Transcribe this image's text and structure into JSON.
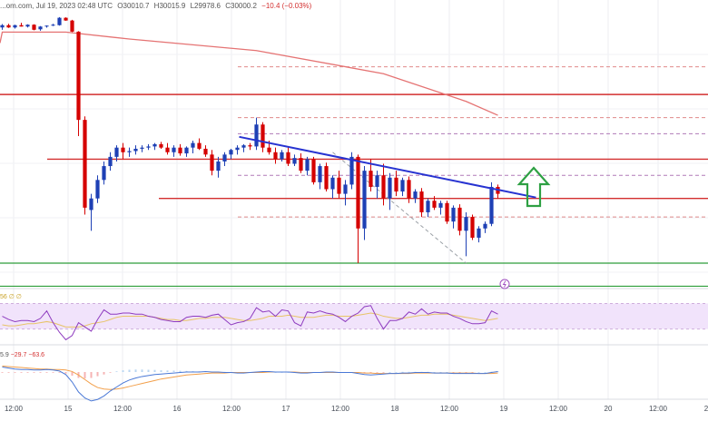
{
  "header": {
    "source_fragment": "...om.com, Jul 19, 2023 02:48 UTC",
    "open": "O30010.7",
    "high": "H30015.9",
    "low": "L29978.6",
    "close": "C30000.2",
    "change": "−10.4 (−0.03%)"
  },
  "indicators": {
    "rsi_label": "56 ∅ ∅",
    "macd_values": [
      "5.9",
      "−29.7",
      "−63.6"
    ]
  },
  "colors": {
    "up": "#1e40b5",
    "down": "#d50000",
    "ma": "#e57373",
    "trendline": "#2733d1",
    "resistance": "#d32f2f",
    "support": "#2e9e3a",
    "arrow": "#2ea043",
    "rsi_line": "#8e3bbf",
    "rsi_band": "#f1e3fb",
    "rsi_ma": "#e8c468",
    "macd_line": "#4a78d6",
    "macd_signal": "#f29f4a"
  },
  "x_axis": {
    "ticks": [
      "12:00",
      "15",
      "12:00",
      "16",
      "12:00",
      "17",
      "12:00",
      "18",
      "12:00",
      "19",
      "12:00",
      "20",
      "12:00",
      "2"
    ]
  },
  "chart_data": {
    "type": "candlestick",
    "candles": [
      [
        0,
        2.0,
        3.5,
        1.0,
        3.0
      ],
      [
        1,
        3.0,
        3.6,
        1.8,
        2.0
      ],
      [
        2,
        2.0,
        3.2,
        1.5,
        3.0
      ],
      [
        3,
        3.0,
        4.0,
        2.4,
        2.4
      ],
      [
        4,
        2.4,
        3.4,
        2.0,
        3.2
      ],
      [
        5,
        3.2,
        3.4,
        0.8,
        1.0
      ],
      [
        6,
        1.2,
        2.6,
        0.6,
        2.4
      ],
      [
        7,
        2.4,
        2.9,
        1.9,
        2.8
      ],
      [
        8,
        2.8,
        3.6,
        2.6,
        3.2
      ],
      [
        9,
        3.0,
        6.5,
        2.8,
        6.2
      ],
      [
        10,
        6.2,
        6.4,
        4.9,
        5.0
      ],
      [
        11,
        5.0,
        5.3,
        0.0,
        0.2
      ],
      [
        12,
        0.2,
        0.4,
        -45.0,
        -38.0
      ],
      [
        13,
        -38.0,
        -36.5,
        -79.0,
        -76.0
      ],
      [
        14,
        -77.0,
        -70.0,
        -86.0,
        -72.0
      ],
      [
        15,
        -72.0,
        -62.0,
        -74.0,
        -64.0
      ],
      [
        16,
        -64.0,
        -56.0,
        -66.0,
        -58.0
      ],
      [
        17,
        -58.0,
        -52.0,
        -60.0,
        -54.0
      ],
      [
        18,
        -54.0,
        -49.0,
        -56.0,
        -50.0
      ],
      [
        19,
        -50.0,
        -48.0,
        -55.0,
        -52.0
      ],
      [
        20,
        -52.0,
        -50.0,
        -54.0,
        -51.5
      ],
      [
        21,
        -51.5,
        -49.0,
        -53.0,
        -50.5
      ],
      [
        22,
        -50.5,
        -49.0,
        -52.0,
        -50.0
      ],
      [
        23,
        -50.0,
        -48.5,
        -51.0,
        -49.5
      ],
      [
        24,
        -49.5,
        -48.0,
        -51.0,
        -48.5
      ],
      [
        25,
        -48.5,
        -47.5,
        -50.5,
        -50.0
      ],
      [
        26,
        -50.0,
        -48.0,
        -53.0,
        -52.0
      ],
      [
        27,
        -52.0,
        -49.0,
        -54.0,
        -50.0
      ],
      [
        28,
        -50.0,
        -48.5,
        -53.5,
        -52.5
      ],
      [
        29,
        -52.5,
        -49.5,
        -54.0,
        -50.0
      ],
      [
        30,
        -50.0,
        -47.0,
        -52.5,
        -48.0
      ],
      [
        31,
        -48.0,
        -46.0,
        -51.0,
        -50.5
      ],
      [
        32,
        -50.5,
        -49.0,
        -54.0,
        -53.0
      ],
      [
        33,
        -53.0,
        -51.0,
        -62.0,
        -60.0
      ],
      [
        34,
        -60.0,
        -54.0,
        -63.0,
        -56.0
      ],
      [
        35,
        -56.0,
        -52.0,
        -58.0,
        -53.0
      ],
      [
        36,
        -53.0,
        -50.5,
        -55.0,
        -51.0
      ],
      [
        37,
        -51.0,
        -49.0,
        -53.0,
        -50.0
      ],
      [
        38,
        -50.0,
        -48.5,
        -52.0,
        -49.0
      ],
      [
        39,
        -49.0,
        -48.0,
        -51.0,
        -49.5
      ],
      [
        40,
        -49.5,
        -37.0,
        -51.0,
        -40.0
      ],
      [
        41,
        -40.0,
        -39.0,
        -52.0,
        -50.0
      ],
      [
        42,
        -50.0,
        -47.0,
        -53.0,
        -52.0
      ],
      [
        43,
        -52.0,
        -50.0,
        -57.0,
        -55.0
      ],
      [
        44,
        -55.0,
        -51.0,
        -56.0,
        -52.0
      ],
      [
        45,
        -52.0,
        -50.0,
        -58.0,
        -57.0
      ],
      [
        46,
        -57.0,
        -53.0,
        -58.0,
        -54.5
      ],
      [
        47,
        -54.5,
        -52.5,
        -61.0,
        -60.0
      ],
      [
        48,
        -60.0,
        -54.0,
        -62.0,
        -55.0
      ],
      [
        49,
        -55.0,
        -54.0,
        -66.0,
        -65.0
      ],
      [
        50,
        -65.0,
        -57.0,
        -68.0,
        -58.0
      ],
      [
        51,
        -58.0,
        -56.5,
        -69.0,
        -68.0
      ],
      [
        52,
        -68.0,
        -62.0,
        -72.0,
        -63.0
      ],
      [
        53,
        -63.0,
        -60.0,
        -72.0,
        -70.0
      ],
      [
        54,
        -70.0,
        -64.0,
        -75.0,
        -66.0
      ],
      [
        55,
        -66.0,
        -52.0,
        -68.0,
        -54.0
      ],
      [
        56,
        -54.0,
        -53.0,
        -100.0,
        -85.0
      ],
      [
        57,
        -85.0,
        -58.0,
        -90.0,
        -60.0
      ],
      [
        58,
        -60.0,
        -55.0,
        -69.0,
        -67.0
      ],
      [
        59,
        -67.0,
        -60.0,
        -72.0,
        -62.0
      ],
      [
        60,
        -62.0,
        -57.0,
        -75.0,
        -72.0
      ],
      [
        61,
        -72.0,
        -61.0,
        -77.0,
        -63.0
      ],
      [
        62,
        -63.0,
        -60.0,
        -71.0,
        -69.0
      ],
      [
        63,
        -69.0,
        -63.0,
        -71.0,
        -64.0
      ],
      [
        64,
        -64.0,
        -62.5,
        -74.0,
        -72.0
      ],
      [
        65,
        -72.0,
        -68.0,
        -74.0,
        -69.0
      ],
      [
        66,
        -69.0,
        -67.5,
        -80.0,
        -78.0
      ],
      [
        67,
        -78.0,
        -72.0,
        -80.0,
        -73.0
      ],
      [
        68,
        -73.0,
        -71.0,
        -77.0,
        -76.0
      ],
      [
        69,
        -76.0,
        -73.0,
        -79.0,
        -74.0
      ],
      [
        70,
        -74.0,
        -73.0,
        -83.0,
        -82.0
      ],
      [
        71,
        -82.0,
        -75.0,
        -85.0,
        -76.0
      ],
      [
        72,
        -76.0,
        -74.5,
        -88.0,
        -86.0
      ],
      [
        73,
        -86.0,
        -78.0,
        -97.0,
        -80.0
      ],
      [
        74,
        -80.0,
        -79.0,
        -90.0,
        -89.0
      ],
      [
        75,
        -89.0,
        -84.0,
        -91.0,
        -85.0
      ],
      [
        76,
        -85.0,
        -82.0,
        -87.0,
        -83.0
      ],
      [
        77,
        -83.0,
        -65.0,
        -84.0,
        -67.0
      ],
      [
        78,
        -67.0,
        -66.0,
        -72.0,
        -70.0
      ]
    ],
    "moving_average": [
      [
        0,
        0
      ],
      [
        10,
        0
      ],
      [
        20,
        -3
      ],
      [
        40,
        -8
      ],
      [
        60,
        -18
      ],
      [
        73,
        -30
      ],
      [
        78,
        -36
      ]
    ],
    "horizontal_levels": {
      "resistance_red": [
        -27.0,
        -55.0,
        -72.0
      ],
      "support_green": [
        -100.0,
        -110.0
      ],
      "dashed_red_upper": [
        -15.0,
        -37.0,
        -80.0
      ],
      "dashed_purple_upper": [
        -44.0,
        -62.0
      ]
    },
    "trendline": [
      [
        43,
        -47.5
      ],
      [
        78,
        -72
      ]
    ],
    "diagonal_dashed": [
      [
        52,
        -52
      ],
      [
        73,
        -100
      ]
    ],
    "rsi": [
      50,
      47,
      45,
      46,
      46,
      45,
      48,
      55,
      44,
      35,
      28,
      32,
      44,
      40,
      36,
      47,
      56,
      52,
      52,
      53,
      53,
      52,
      52,
      50,
      49,
      47,
      46,
      45,
      45,
      49,
      50,
      50,
      49,
      51,
      52,
      47,
      42,
      44,
      45,
      48,
      58,
      54,
      55,
      50,
      56,
      55,
      44,
      41,
      54,
      53,
      55,
      53,
      52,
      49,
      45,
      50,
      53,
      59,
      60,
      48,
      38,
      46,
      46,
      48,
      54,
      52,
      57,
      52,
      54,
      53,
      53,
      50,
      48,
      45,
      43,
      43,
      44,
      55,
      52
    ],
    "rsi_ma": [
      42,
      41,
      41,
      42,
      43,
      43,
      44,
      45,
      44,
      42,
      40,
      40,
      40,
      41,
      43,
      44,
      45,
      47,
      49,
      50,
      50,
      50,
      50,
      50,
      49,
      48,
      47,
      47,
      46,
      46,
      47,
      48,
      48,
      49,
      49,
      49,
      48,
      47,
      46,
      46,
      47,
      48,
      50,
      50,
      50,
      51,
      50,
      49,
      49,
      49,
      50,
      51,
      51,
      50,
      50,
      50,
      51,
      52,
      53,
      52,
      50,
      49,
      48,
      48,
      49,
      50,
      51,
      51,
      52,
      52,
      52,
      51,
      50,
      49,
      48,
      47,
      46,
      47,
      48
    ],
    "macd": [
      10,
      8,
      6,
      5,
      5,
      4,
      4,
      5,
      4,
      2,
      -5,
      -20,
      -40,
      -52,
      -58,
      -55,
      -48,
      -38,
      -30,
      -22,
      -16,
      -12,
      -9,
      -7,
      -5,
      -4,
      -3,
      -2,
      -1,
      0,
      0,
      0,
      1,
      0,
      0,
      -1,
      -1,
      -2,
      -2,
      -1,
      0,
      1,
      1,
      0,
      0,
      0,
      -1,
      -2,
      -2,
      -1,
      -1,
      0,
      0,
      -1,
      -1,
      -1,
      -3,
      -5,
      -6,
      -5,
      -4,
      -3,
      -3,
      -2,
      -2,
      -1,
      -1,
      -1,
      -2,
      -2,
      -2,
      -3,
      -3,
      -3,
      -3,
      -3,
      -3,
      -1,
      1
    ],
    "macd_signal": [
      12,
      11,
      10,
      9,
      8,
      7,
      6,
      6,
      5,
      5,
      4,
      1,
      -6,
      -15,
      -24,
      -31,
      -34,
      -35,
      -34,
      -32,
      -29,
      -26,
      -23,
      -20,
      -17,
      -14,
      -12,
      -10,
      -8,
      -6,
      -5,
      -4,
      -3,
      -2,
      -2,
      -2,
      -1,
      -1,
      -1,
      -1,
      -1,
      -1,
      0,
      0,
      0,
      0,
      0,
      -1,
      -1,
      -1,
      -1,
      -1,
      -1,
      -1,
      -1,
      -1,
      -1,
      -2,
      -2,
      -3,
      -3,
      -3,
      -3,
      -3,
      -3,
      -2,
      -2,
      -2,
      -2,
      -2,
      -2,
      -2,
      -2,
      -2,
      -2,
      -3,
      -3,
      -3,
      -2
    ]
  }
}
